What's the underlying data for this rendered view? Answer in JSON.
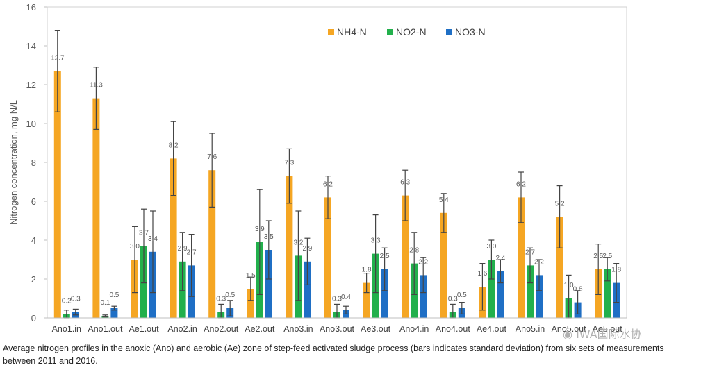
{
  "chart_data": {
    "type": "bar",
    "categories": [
      "Ano1.in",
      "Ano1.out",
      "Ae1.out",
      "Ano2.in",
      "Ano2.out",
      "Ae2.out",
      "Ano3.in",
      "Ano3.out",
      "Ae3.out",
      "Ano4.in",
      "Ano4.out",
      "Ae4.out",
      "Ano5.in",
      "Ano5.out",
      "Ae5.out"
    ],
    "series": [
      {
        "name": "NH4-N",
        "color": "#F5A623",
        "values": [
          12.7,
          11.3,
          3.0,
          8.2,
          7.6,
          1.5,
          7.3,
          6.2,
          1.8,
          6.3,
          5.4,
          1.6,
          6.2,
          5.2,
          2.5
        ],
        "labels": [
          "12.7",
          "11.3",
          "3.0",
          "8.2",
          "7.6",
          "1.5",
          "7.3",
          "6.2",
          "1.8",
          "6.3",
          "5.4",
          "1.6",
          "6.2",
          "5.2",
          "2.5"
        ],
        "error": [
          2.1,
          1.6,
          1.7,
          1.9,
          1.9,
          0.6,
          1.4,
          1.1,
          0.5,
          1.3,
          1.0,
          1.2,
          1.3,
          1.6,
          1.3
        ]
      },
      {
        "name": "NO2-N",
        "color": "#22B04C",
        "values": [
          0.2,
          0.1,
          3.7,
          2.9,
          0.3,
          3.9,
          3.2,
          0.3,
          3.3,
          2.8,
          0.3,
          3.0,
          2.7,
          1.0,
          2.5
        ],
        "labels": [
          "0.2",
          "0.1",
          "3.7",
          "2.9",
          "0.3",
          "3.9",
          "3.2",
          "0.3",
          "3.3",
          "2.8",
          "0.3",
          "3.0",
          "2.7",
          "1.0",
          "2.5"
        ],
        "error": [
          0.2,
          0.05,
          1.9,
          1.5,
          0.4,
          2.7,
          2.3,
          0.4,
          2.0,
          1.6,
          0.4,
          1.0,
          0.9,
          1.2,
          0.6
        ]
      },
      {
        "name": "NO3-N",
        "color": "#1F6FC5",
        "values": [
          0.3,
          0.5,
          3.4,
          2.7,
          0.5,
          3.5,
          2.9,
          0.4,
          2.5,
          2.2,
          0.5,
          2.4,
          2.2,
          0.8,
          1.8
        ],
        "labels": [
          "0.3",
          "0.5",
          "3.4",
          "2.7",
          "0.5",
          "3.5",
          "2.9",
          "0.4",
          "2.5",
          "2.2",
          "0.5",
          "2.4",
          "2.2",
          "0.8",
          "1.8"
        ],
        "error": [
          0.15,
          0.1,
          2.1,
          1.6,
          0.4,
          1.5,
          1.2,
          0.2,
          1.1,
          0.9,
          0.3,
          0.6,
          0.8,
          0.6,
          1.0
        ]
      }
    ],
    "title": "",
    "xlabel": "",
    "ylabel": "Nitrogen concentration, mg N/L",
    "ylim": [
      0,
      16
    ],
    "yticks": [
      0,
      2,
      4,
      6,
      8,
      10,
      12,
      14,
      16
    ],
    "grid": false,
    "legend_position": "top-right"
  },
  "caption": "Average nitrogen profiles in the anoxic (Ano) and aerobic (Ae) zone of step-feed activated sludge process (bars indicates standard deviation) from six sets of measurements between 2011 and 2016.",
  "watermark": "IWA国际水协"
}
